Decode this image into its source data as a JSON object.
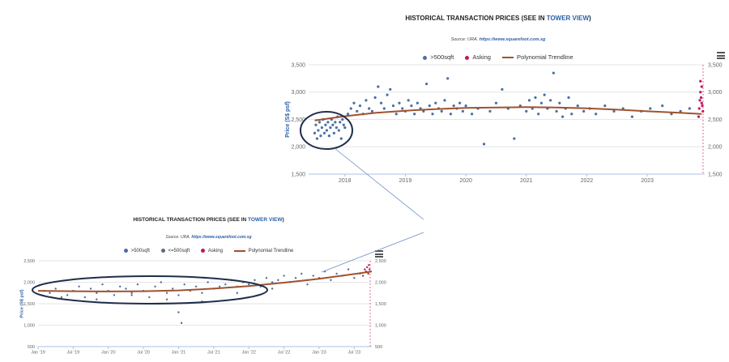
{
  "charts": [
    {
      "title_prefix": "HISTORICAL TRANSACTION PRICES (SEE IN ",
      "title_link": "TOWER VIEW",
      "title_suffix": ")",
      "source_prefix": "Source: URA.",
      "source_link": "https://www.squarefoot.com.sg",
      "legend": [
        ">500sqft",
        "Asking",
        "Polynomial Trendline"
      ],
      "menu_icon": "hamburger-menu-icon"
    },
    {
      "title_prefix": "HISTORICAL TRANSACTION PRICES (SEE IN ",
      "title_link": "TOWER VIEW",
      "title_suffix": ")",
      "source_prefix": "Source: URA.",
      "source_link": "https://www.squarefoot.com.sg",
      "legend": [
        ">500sqft",
        "<=500sqft",
        "Asking",
        "Polynomial Trendline"
      ],
      "menu_icon": "hamburger-menu-icon"
    }
  ],
  "colors": {
    "over500": "#4a6fa5",
    "under500": "#5b6b7d",
    "asking": "#c2185b",
    "trend": "#a0522d",
    "grid": "#e6e6e6",
    "accent": "#2b5fa8",
    "annot": "#1f2e4a"
  },
  "chart_data": [
    {
      "type": "scatter",
      "title": "HISTORICAL TRANSACTION PRICES (SEE IN TOWER VIEW)",
      "ylabel": "Price (S$ psf)",
      "ylim": [
        1500,
        3500
      ],
      "yticks": [
        1500,
        2000,
        2500,
        3000,
        3500
      ],
      "yticklabels": [
        "1,500",
        "2,000",
        "2,500",
        "3,000",
        "3,500"
      ],
      "xlim": [
        2017.4,
        2023.95
      ],
      "xticks": [
        2018,
        2019,
        2020,
        2021,
        2022,
        2023
      ],
      "xticklabels": [
        "2018",
        "2019",
        "2020",
        "2021",
        "2022",
        "2023"
      ],
      "legend_position": "top-center",
      "grid": true,
      "series": [
        {
          "name": ">500sqft",
          "type": "scatter",
          "points": [
            [
              2017.5,
              2250
            ],
            [
              2017.52,
              2400
            ],
            [
              2017.54,
              2150
            ],
            [
              2017.56,
              2300
            ],
            [
              2017.58,
              2450
            ],
            [
              2017.6,
              2200
            ],
            [
              2017.62,
              2350
            ],
            [
              2017.64,
              2500
            ],
            [
              2017.66,
              2250
            ],
            [
              2017.68,
              2400
            ],
            [
              2017.7,
              2300
            ],
            [
              2017.72,
              2450
            ],
            [
              2017.74,
              2200
            ],
            [
              2017.76,
              2350
            ],
            [
              2017.78,
              2500
            ],
            [
              2017.8,
              2400
            ],
            [
              2017.82,
              2250
            ],
            [
              2017.84,
              2450
            ],
            [
              2017.86,
              2350
            ],
            [
              2017.88,
              2550
            ],
            [
              2017.9,
              2300
            ],
            [
              2017.92,
              2450
            ],
            [
              2017.94,
              2150
            ],
            [
              2017.96,
              2500
            ],
            [
              2017.98,
              2400
            ],
            [
              2018.0,
              2350
            ],
            [
              2018.05,
              2600
            ],
            [
              2018.1,
              2700
            ],
            [
              2018.15,
              2800
            ],
            [
              2018.2,
              2650
            ],
            [
              2018.25,
              2750
            ],
            [
              2018.3,
              2600
            ],
            [
              2018.35,
              2850
            ],
            [
              2018.4,
              2700
            ],
            [
              2018.45,
              2650
            ],
            [
              2018.5,
              2900
            ],
            [
              2018.55,
              3100
            ],
            [
              2018.6,
              2800
            ],
            [
              2018.65,
              2700
            ],
            [
              2018.7,
              2950
            ],
            [
              2018.75,
              3050
            ],
            [
              2018.8,
              2750
            ],
            [
              2018.85,
              2600
            ],
            [
              2018.9,
              2800
            ],
            [
              2018.95,
              2700
            ],
            [
              2019.0,
              2650
            ],
            [
              2019.05,
              2850
            ],
            [
              2019.1,
              2750
            ],
            [
              2019.15,
              2600
            ],
            [
              2019.2,
              2800
            ],
            [
              2019.25,
              2700
            ],
            [
              2019.3,
              2650
            ],
            [
              2019.35,
              3150
            ],
            [
              2019.4,
              2750
            ],
            [
              2019.45,
              2600
            ],
            [
              2019.5,
              2800
            ],
            [
              2019.55,
              2700
            ],
            [
              2019.6,
              2650
            ],
            [
              2019.65,
              2850
            ],
            [
              2019.7,
              3250
            ],
            [
              2019.75,
              2600
            ],
            [
              2019.8,
              2750
            ],
            [
              2019.85,
              2700
            ],
            [
              2019.9,
              2800
            ],
            [
              2019.95,
              2650
            ],
            [
              2020.0,
              2750
            ],
            [
              2020.1,
              2600
            ],
            [
              2020.2,
              2700
            ],
            [
              2020.3,
              2050
            ],
            [
              2020.4,
              2650
            ],
            [
              2020.5,
              2800
            ],
            [
              2020.6,
              3050
            ],
            [
              2020.7,
              2700
            ],
            [
              2020.8,
              2150
            ],
            [
              2020.9,
              2750
            ],
            [
              2021.0,
              2650
            ],
            [
              2021.05,
              2850
            ],
            [
              2021.1,
              2700
            ],
            [
              2021.15,
              2900
            ],
            [
              2021.2,
              2600
            ],
            [
              2021.25,
              2800
            ],
            [
              2021.3,
              2950
            ],
            [
              2021.35,
              2700
            ],
            [
              2021.4,
              2850
            ],
            [
              2021.45,
              3350
            ],
            [
              2021.5,
              2650
            ],
            [
              2021.55,
              2800
            ],
            [
              2021.6,
              2550
            ],
            [
              2021.65,
              2700
            ],
            [
              2021.7,
              2900
            ],
            [
              2021.75,
              2600
            ],
            [
              2021.85,
              2750
            ],
            [
              2021.95,
              2650
            ],
            [
              2022.05,
              2700
            ],
            [
              2022.15,
              2600
            ],
            [
              2022.3,
              2750
            ],
            [
              2022.45,
              2650
            ],
            [
              2022.6,
              2700
            ],
            [
              2022.75,
              2550
            ],
            [
              2022.9,
              2650
            ],
            [
              2023.05,
              2700
            ],
            [
              2023.25,
              2750
            ],
            [
              2023.4,
              2600
            ],
            [
              2023.55,
              2650
            ],
            [
              2023.7,
              2700
            ]
          ]
        },
        {
          "name": "Asking",
          "type": "scatter",
          "points": [
            [
              2023.85,
              2550
            ],
            [
              2023.86,
              2700
            ],
            [
              2023.87,
              2850
            ],
            [
              2023.88,
              3000
            ],
            [
              2023.88,
              3200
            ],
            [
              2023.89,
              2900
            ],
            [
              2023.9,
              2800
            ],
            [
              2023.9,
              3100
            ],
            [
              2023.91,
              2750
            ],
            [
              2023.92,
              2650
            ]
          ]
        },
        {
          "name": "Polynomial Trendline",
          "type": "line",
          "points": [
            [
              2017.5,
              2480
            ],
            [
              2018.0,
              2560
            ],
            [
              2018.5,
              2620
            ],
            [
              2019.0,
              2660
            ],
            [
              2019.5,
              2690
            ],
            [
              2020.0,
              2710
            ],
            [
              2020.5,
              2720
            ],
            [
              2021.0,
              2725
            ],
            [
              2021.5,
              2720
            ],
            [
              2022.0,
              2705
            ],
            [
              2022.5,
              2680
            ],
            [
              2023.0,
              2650
            ],
            [
              2023.5,
              2625
            ],
            [
              2023.9,
              2600
            ]
          ]
        }
      ]
    },
    {
      "type": "scatter",
      "title": "HISTORICAL TRANSACTION PRICES (SEE IN TOWER VIEW)",
      "ylabel": "Price (S$ psf)",
      "ylim": [
        500,
        2500
      ],
      "yticks": [
        500,
        1000,
        1500,
        2000,
        2500
      ],
      "yticklabels": [
        "500",
        "1,000",
        "1,500",
        "2,000",
        "2,500"
      ],
      "xlim": [
        0,
        57
      ],
      "xticks": [
        0,
        6,
        12,
        18,
        24,
        30,
        36,
        42,
        48,
        54
      ],
      "xticklabels": [
        "Jan '19",
        "Jul '19",
        "Jan '20",
        "Jul '20",
        "Jan '21",
        "Jul '21",
        "Jan '22",
        "Jul '22",
        "Jan '23",
        "Jul '23"
      ],
      "legend_position": "top-center",
      "grid": true,
      "series": [
        {
          "name": ">500sqft",
          "type": "scatter",
          "points": [
            [
              1,
              1800
            ],
            [
              2,
              1750
            ],
            [
              3,
              1850
            ],
            [
              5,
              1700
            ],
            [
              6,
              1800
            ],
            [
              7,
              1900
            ],
            [
              8,
              1650
            ],
            [
              9,
              1850
            ],
            [
              10,
              1750
            ],
            [
              11,
              1950
            ],
            [
              12,
              1800
            ],
            [
              13,
              1700
            ],
            [
              14,
              1900
            ],
            [
              15,
              1850
            ],
            [
              16,
              1750
            ],
            [
              17,
              1950
            ],
            [
              18,
              1800
            ],
            [
              19,
              1650
            ],
            [
              20,
              1900
            ],
            [
              21,
              2000
            ],
            [
              22,
              1750
            ],
            [
              23,
              1850
            ],
            [
              24,
              1700
            ],
            [
              25,
              1950
            ],
            [
              26,
              1800
            ],
            [
              27,
              1900
            ],
            [
              28,
              1750
            ],
            [
              29,
              2000
            ],
            [
              30,
              1850
            ],
            [
              31,
              1900
            ],
            [
              32,
              1950
            ],
            [
              33,
              2050
            ],
            [
              34,
              1900
            ],
            [
              35,
              2000
            ],
            [
              36,
              1950
            ],
            [
              37,
              2050
            ],
            [
              38,
              1900
            ],
            [
              39,
              2100
            ],
            [
              40,
              2000
            ],
            [
              41,
              2050
            ],
            [
              42,
              2150
            ],
            [
              43,
              2000
            ],
            [
              44,
              2100
            ],
            [
              45,
              2200
            ],
            [
              46,
              2050
            ],
            [
              47,
              2150
            ],
            [
              48,
              2100
            ],
            [
              49,
              2250
            ],
            [
              50,
              2050
            ],
            [
              51,
              2200
            ],
            [
              52,
              2150
            ],
            [
              53,
              2300
            ],
            [
              54,
              2100
            ],
            [
              55,
              2200
            ]
          ]
        },
        {
          "name": "<=500sqft",
          "type": "scatter",
          "points": [
            [
              4,
              1650
            ],
            [
              10,
              1600
            ],
            [
              16,
              1700
            ],
            [
              22,
              1600
            ],
            [
              24,
              1300
            ],
            [
              24.5,
              1050
            ],
            [
              28,
              1550
            ],
            [
              34,
              1750
            ],
            [
              40,
              1850
            ],
            [
              46,
              1950
            ]
          ]
        },
        {
          "name": "Asking",
          "type": "scatter",
          "points": [
            [
              55.5,
              2150
            ],
            [
              55.8,
              2300
            ],
            [
              56,
              2250
            ],
            [
              56.2,
              2350
            ],
            [
              56.4,
              2200
            ],
            [
              56.5,
              2400
            ],
            [
              56.6,
              2300
            ],
            [
              56.8,
              2250
            ]
          ]
        },
        {
          "name": "Polynomial Trendline",
          "type": "line",
          "points": [
            [
              0,
              1800
            ],
            [
              6,
              1790
            ],
            [
              12,
              1785
            ],
            [
              18,
              1790
            ],
            [
              24,
              1810
            ],
            [
              30,
              1850
            ],
            [
              36,
              1910
            ],
            [
              42,
              1990
            ],
            [
              48,
              2080
            ],
            [
              54,
              2190
            ],
            [
              57,
              2250
            ]
          ]
        }
      ]
    }
  ]
}
